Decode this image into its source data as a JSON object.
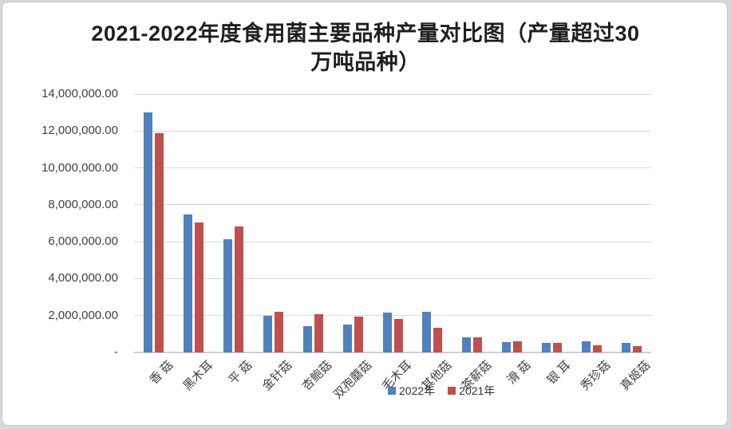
{
  "header": {
    "title_line1": "2021-2022年度食用菌主要品种产量对比图（产量超过30",
    "title_line2": "万吨品种）"
  },
  "legend": {
    "items": [
      {
        "label": "2022年",
        "color": "#4F81BD"
      },
      {
        "label": "2021年",
        "color": "#C0504D"
      }
    ]
  },
  "chart_data": {
    "type": "bar",
    "title": "2021-2022年度食用菌主要品种产量对比图（产量超过30万吨品种）",
    "categories": [
      "香 菇",
      "黑木耳",
      "平 菇",
      "金针菇",
      "杏鲍菇",
      "双孢蘑菇",
      "毛木耳",
      "其他菇",
      "茶薪菇",
      "滑 菇",
      "银 耳",
      "秀珍菇",
      "真姬菇"
    ],
    "series": [
      {
        "name": "2022年",
        "color": "#4F81BD",
        "values": [
          13000000,
          7480000,
          6150000,
          1970000,
          1420000,
          1530000,
          2150000,
          2190000,
          820000,
          570000,
          500000,
          610000,
          520000
        ]
      },
      {
        "name": "2021年",
        "color": "#C0504D",
        "values": [
          11900000,
          7030000,
          6830000,
          2190000,
          2080000,
          1950000,
          1800000,
          1330000,
          840000,
          610000,
          510000,
          410000,
          340000
        ]
      }
    ],
    "xlabel": "",
    "ylabel": "",
    "ylim": [
      0,
      14000000
    ],
    "y_ticks": [
      "14,000,000.00",
      "12,000,000.00",
      "10,000,000.00",
      "8,000,000.00",
      "6,000,000.00",
      "4,000,000.00",
      "2,000,000.00",
      "-"
    ],
    "grid": true,
    "legend_position": "bottom-center-overlapping-x-labels",
    "gridline_color": "#D9D9D9",
    "axis_text_color": "#404040"
  }
}
